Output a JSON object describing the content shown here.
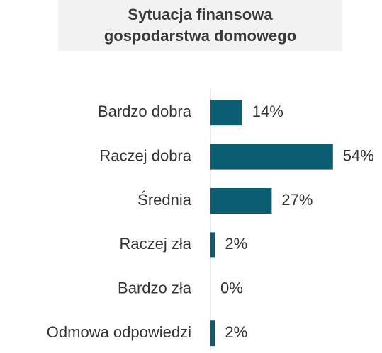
{
  "chart_data": {
    "type": "hbar",
    "title": "Sytuacja finansowa gospodarstwa domowego",
    "categories": [
      "Bardzo dobra",
      "Raczej dobra",
      "Średnia",
      "Raczej zła",
      "Bardzo zła",
      "Odmowa odpowiedzi"
    ],
    "values": [
      14,
      54,
      27,
      2,
      0,
      2
    ],
    "value_labels": [
      "14%",
      "54%",
      "27%",
      "2%",
      "0%",
      "2%"
    ],
    "color": "#0b5e72"
  }
}
